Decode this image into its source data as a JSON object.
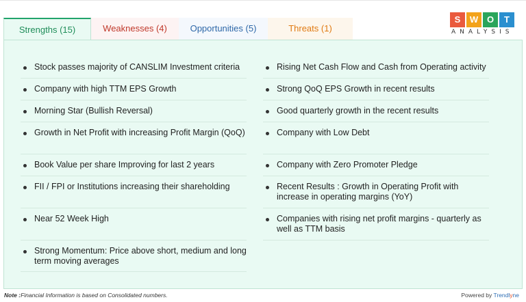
{
  "tabs": [
    {
      "label": "Strengths (15)"
    },
    {
      "label": "Weaknesses (4)"
    },
    {
      "label": "Opportunities (5)"
    },
    {
      "label": "Threats (1)"
    }
  ],
  "logo": {
    "letters": [
      "S",
      "W",
      "O",
      "T"
    ],
    "colors": [
      "#ea5a3d",
      "#f3a31b",
      "#2aa55b",
      "#2b8fcf"
    ],
    "subtitle": "ANALYSIS"
  },
  "strengths": {
    "left": [
      "Stock passes majority of CANSLIM Investment criteria",
      "Company with high TTM EPS Growth",
      "Morning Star (Bullish Reversal)",
      "Growth in Net Profit with increasing Profit Margin (QoQ)",
      "Book Value per share Improving for last 2 years",
      "FII / FPI or Institutions increasing their shareholding",
      "Near 52 Week High",
      "Strong Momentum: Price above short, medium and long term moving averages"
    ],
    "right": [
      "Rising Net Cash Flow and Cash from Operating activity",
      "Strong QoQ EPS Growth in recent results",
      "Good quarterly growth in the recent results",
      "Company with Low Debt",
      "Company with Zero Promoter Pledge",
      "Recent Results : Growth in Operating Profit with increase in operating margins (YoY)",
      "Companies with rising net profit margins - quarterly as well as TTM basis"
    ]
  },
  "footer": {
    "note_label": "Note :",
    "note_text": "Financial Information is based on Consolidated numbers.",
    "powered_by": "Powered by ",
    "brand_main": "Trendl",
    "brand_accent": "y",
    "brand_tail": "ne"
  }
}
